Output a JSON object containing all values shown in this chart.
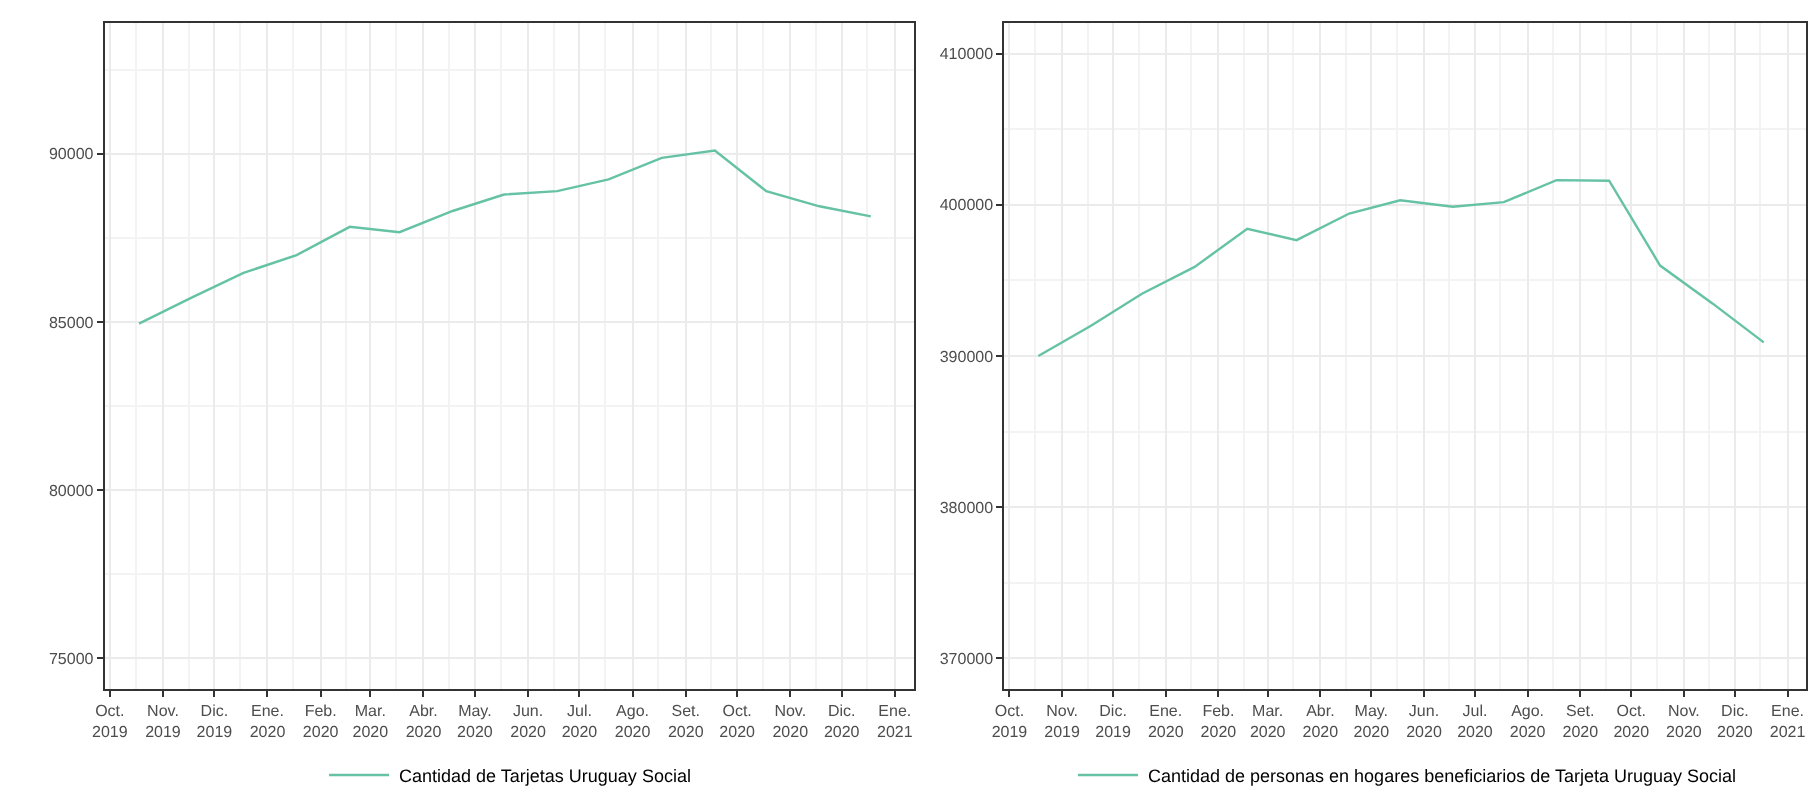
{
  "chart_data": [
    {
      "type": "line",
      "x": [
        "2019-10-18",
        "2019-11-18",
        "2019-12-18",
        "2020-01-18",
        "2020-02-18",
        "2020-03-18",
        "2020-04-18",
        "2020-05-18",
        "2020-06-18",
        "2020-07-18",
        "2020-08-18",
        "2020-09-18",
        "2020-10-18",
        "2020-11-18",
        "2020-12-18"
      ],
      "series": [
        {
          "name": "Cantidad de Tarjetas Uruguay Social",
          "color": "#66c2a5",
          "values": [
            84950,
            85730,
            86460,
            86990,
            87830,
            87670,
            88300,
            88790,
            88890,
            89240,
            89880,
            90100,
            88890,
            88440,
            88140
          ]
        }
      ],
      "ylim": [
        74100,
        93880
      ],
      "yticks": [
        75000,
        80000,
        85000,
        90000
      ],
      "xlim": [
        "2019-09-28",
        "2021-01-12"
      ],
      "xticks": [
        {
          "value": "2019-10-01",
          "label": "Oct.\n2019"
        },
        {
          "value": "2019-11-01",
          "label": "Nov.\n2019"
        },
        {
          "value": "2019-12-01",
          "label": "Dic.\n2019"
        },
        {
          "value": "2020-01-01",
          "label": "Ene.\n2020"
        },
        {
          "value": "2020-02-01",
          "label": "Feb.\n2020"
        },
        {
          "value": "2020-03-01",
          "label": "Mar.\n2020"
        },
        {
          "value": "2020-04-01",
          "label": "Abr.\n2020"
        },
        {
          "value": "2020-05-01",
          "label": "May.\n2020"
        },
        {
          "value": "2020-06-01",
          "label": "Jun.\n2020"
        },
        {
          "value": "2020-07-01",
          "label": "Jul.\n2020"
        },
        {
          "value": "2020-08-01",
          "label": "Ago.\n2020"
        },
        {
          "value": "2020-09-01",
          "label": "Set.\n2020"
        },
        {
          "value": "2020-10-01",
          "label": "Oct.\n2020"
        },
        {
          "value": "2020-11-01",
          "label": "Nov.\n2020"
        },
        {
          "value": "2020-12-01",
          "label": "Dic.\n2020"
        },
        {
          "value": "2021-01-01",
          "label": "Ene.\n2021"
        }
      ],
      "grid": true,
      "legend": "bottom",
      "marker": "none",
      "line_style": "solid"
    },
    {
      "type": "line",
      "x": [
        "2019-10-18",
        "2019-11-18",
        "2019-12-18",
        "2020-01-18",
        "2020-02-18",
        "2020-03-18",
        "2020-04-18",
        "2020-05-18",
        "2020-06-18",
        "2020-07-18",
        "2020-08-18",
        "2020-09-18",
        "2020-10-18",
        "2020-11-18",
        "2020-12-18"
      ],
      "series": [
        {
          "name": "Cantidad de personas en hogares beneficiarios de Tarjeta Uruguay Social",
          "color": "#66c2a5",
          "values": [
            390000,
            392000,
            394120,
            395890,
            398410,
            397660,
            399420,
            400300,
            399870,
            400170,
            401630,
            401590,
            395980,
            393460,
            390900
          ]
        }
      ],
      "ylim": [
        368000,
        412000
      ],
      "yticks": [
        370000,
        380000,
        390000,
        400000,
        410000
      ],
      "xlim": [
        "2019-09-28",
        "2021-01-12"
      ],
      "xticks": [
        {
          "value": "2019-10-01",
          "label": "Oct.\n2019"
        },
        {
          "value": "2019-11-01",
          "label": "Nov.\n2019"
        },
        {
          "value": "2019-12-01",
          "label": "Dic.\n2019"
        },
        {
          "value": "2020-01-01",
          "label": "Ene.\n2020"
        },
        {
          "value": "2020-02-01",
          "label": "Feb.\n2020"
        },
        {
          "value": "2020-03-01",
          "label": "Mar.\n2020"
        },
        {
          "value": "2020-04-01",
          "label": "Abr.\n2020"
        },
        {
          "value": "2020-05-01",
          "label": "May.\n2020"
        },
        {
          "value": "2020-06-01",
          "label": "Jun.\n2020"
        },
        {
          "value": "2020-07-01",
          "label": "Jul.\n2020"
        },
        {
          "value": "2020-08-01",
          "label": "Ago.\n2020"
        },
        {
          "value": "2020-09-01",
          "label": "Set.\n2020"
        },
        {
          "value": "2020-10-01",
          "label": "Oct.\n2020"
        },
        {
          "value": "2020-11-01",
          "label": "Nov.\n2020"
        },
        {
          "value": "2020-12-01",
          "label": "Dic.\n2020"
        },
        {
          "value": "2021-01-01",
          "label": "Ene.\n2021"
        }
      ],
      "grid": true,
      "legend": "bottom",
      "marker": "none",
      "line_style": "solid"
    }
  ]
}
